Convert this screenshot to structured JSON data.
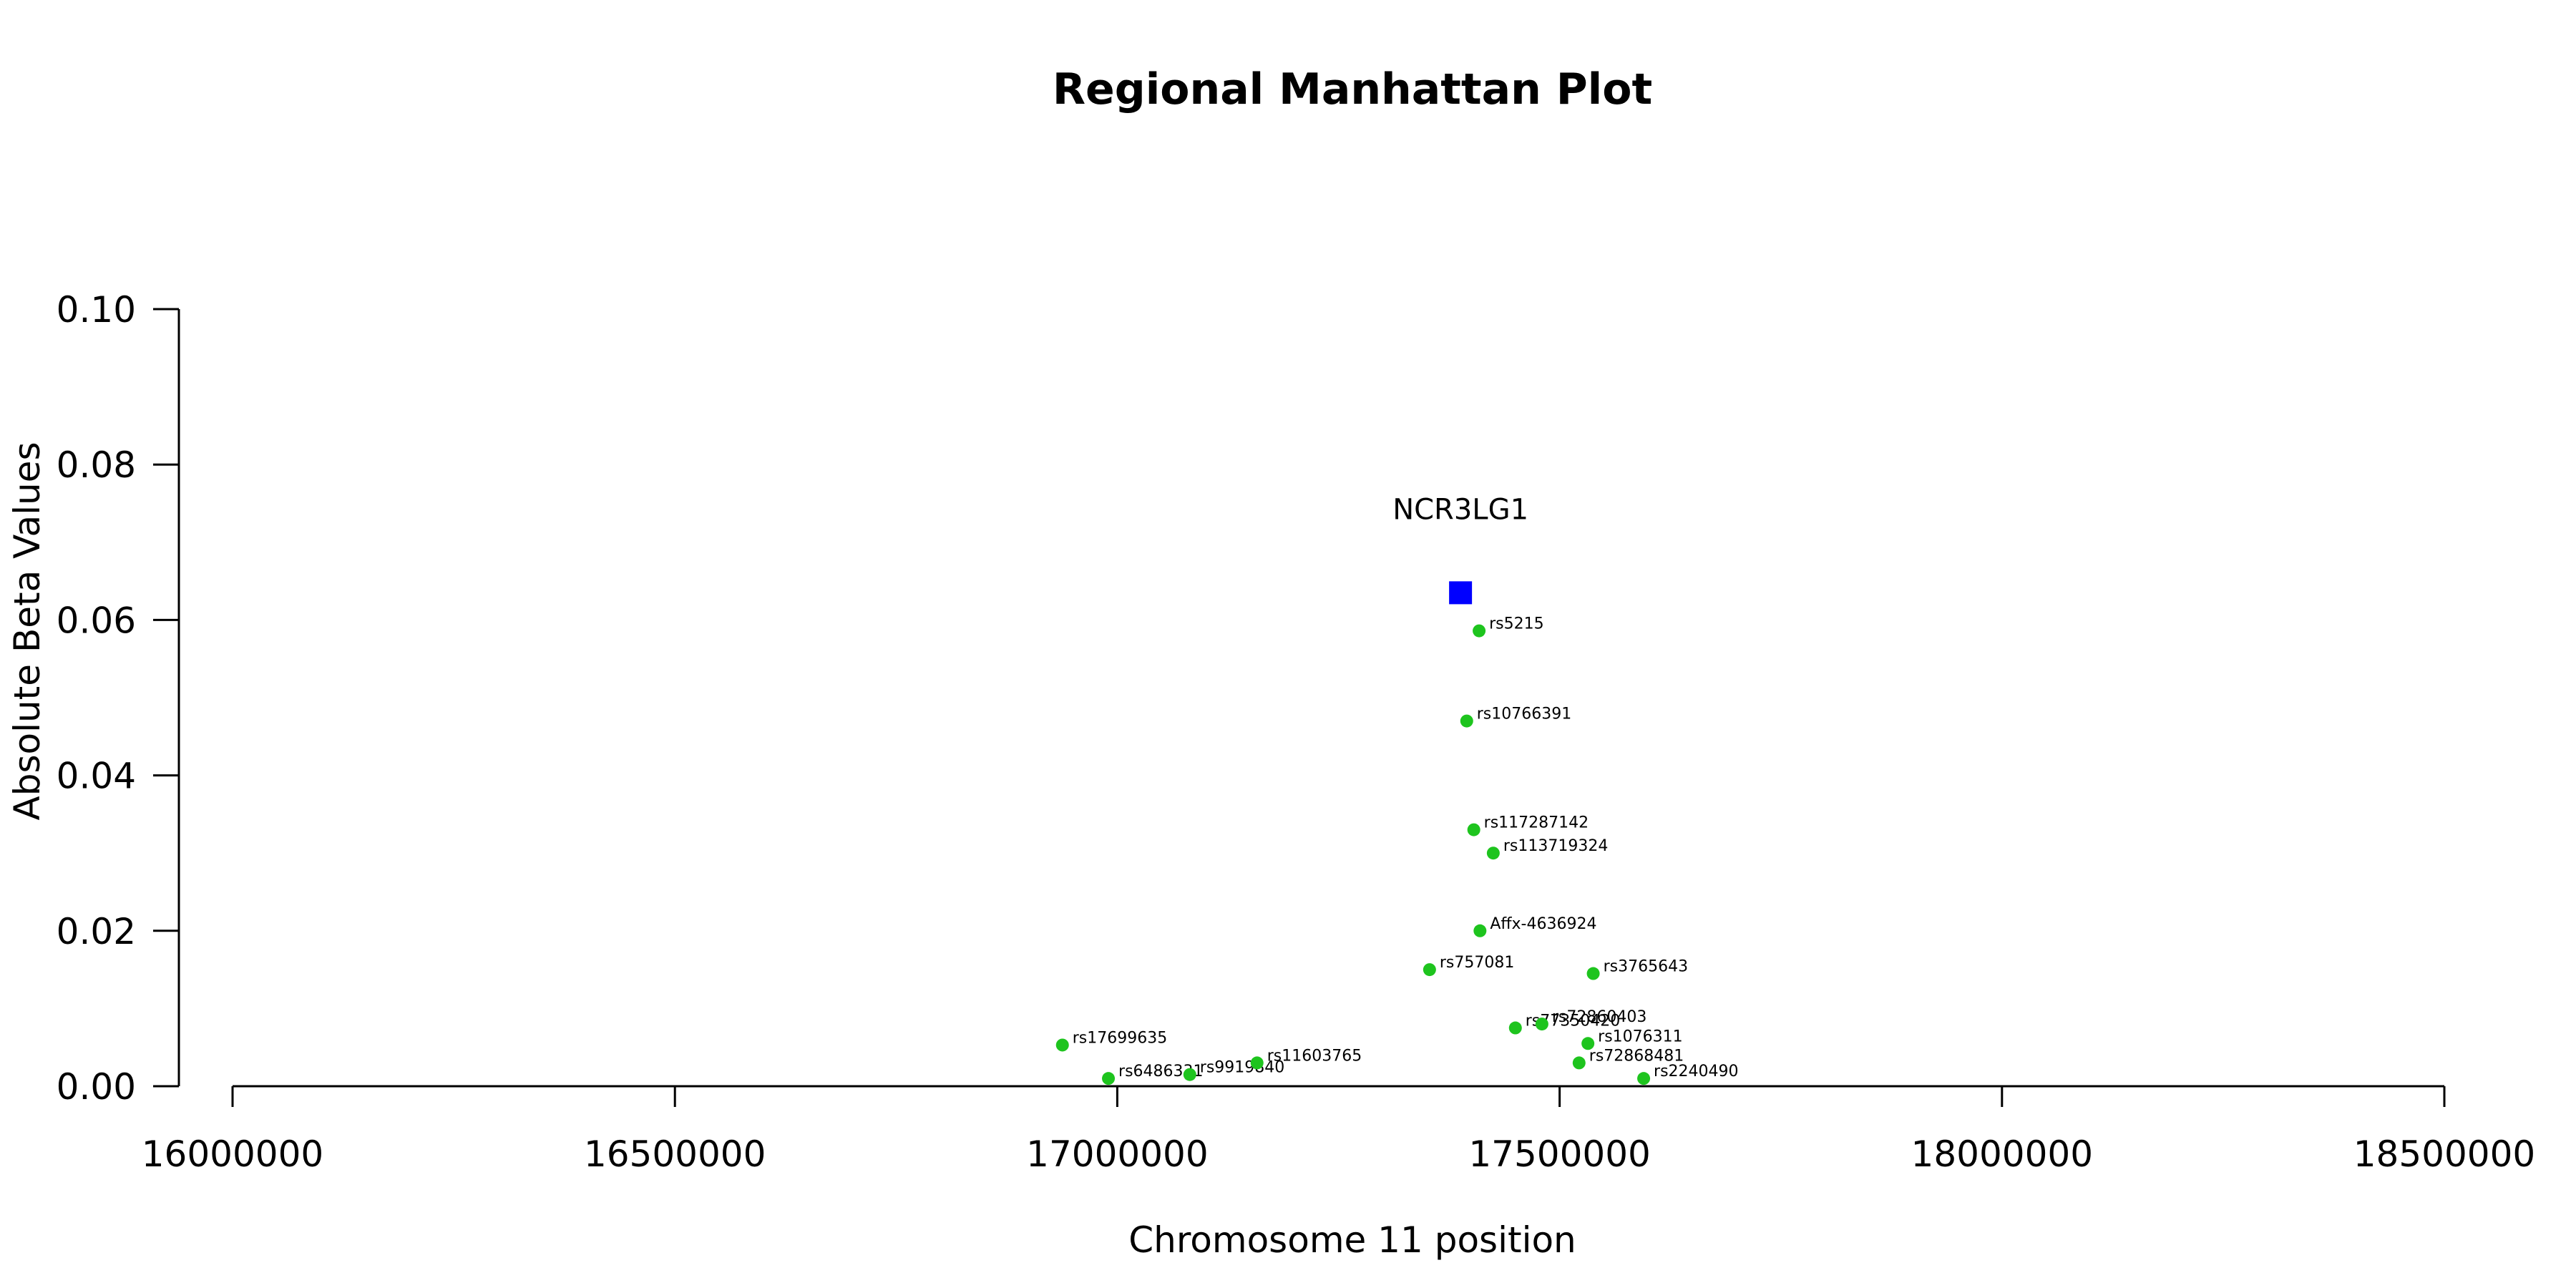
{
  "chart_data": {
    "type": "scatter",
    "title": "Regional Manhattan Plot",
    "xlabel": "Chromosome 11 position",
    "ylabel": "Absolute Beta Values",
    "xlim": [
      16000000,
      18500000
    ],
    "ylim": [
      0,
      0.1
    ],
    "x_ticks": [
      16000000,
      16500000,
      17000000,
      17500000,
      18000000,
      18500000
    ],
    "x_tick_labels": [
      "16000000",
      "16500000",
      "17000000",
      "17500000",
      "18000000",
      "18500000"
    ],
    "y_ticks": [
      0,
      0.02,
      0.04,
      0.06,
      0.08,
      0.1
    ],
    "y_tick_labels": [
      "0.00",
      "0.02",
      "0.04",
      "0.06",
      "0.08",
      "0.10"
    ],
    "grid": false,
    "colors": {
      "snp": "#1ec41e",
      "gene": "#0000ff"
    },
    "gene": {
      "name": "NCR3LG1",
      "x": 17388000,
      "y": 0.0635
    },
    "snps": [
      {
        "label": "rs5215",
        "x": 17409000,
        "y": 0.0586
      },
      {
        "label": "rs10766391",
        "x": 17395000,
        "y": 0.047
      },
      {
        "label": "rs117287142",
        "x": 17403000,
        "y": 0.033
      },
      {
        "label": "rs113719324",
        "x": 17425000,
        "y": 0.03
      },
      {
        "label": "Affx-4636924",
        "x": 17410000,
        "y": 0.02
      },
      {
        "label": "rs757081",
        "x": 17353000,
        "y": 0.015
      },
      {
        "label": "rs3765643",
        "x": 17538000,
        "y": 0.0145
      },
      {
        "label": "rs77350420",
        "x": 17450000,
        "y": 0.0075
      },
      {
        "label": "rs72860403",
        "x": 17480000,
        "y": 0.008
      },
      {
        "label": "rs1076311",
        "x": 17532000,
        "y": 0.0055
      },
      {
        "label": "rs72868481",
        "x": 17522000,
        "y": 0.003
      },
      {
        "label": "rs2240490",
        "x": 17595000,
        "y": 0.001
      },
      {
        "label": "rs17699635",
        "x": 16938000,
        "y": 0.0053
      },
      {
        "label": "rs6486331",
        "x": 16990000,
        "y": 0.001
      },
      {
        "label": "rs9919840",
        "x": 17082000,
        "y": 0.0015
      },
      {
        "label": "rs11603765",
        "x": 17158000,
        "y": 0.003
      }
    ]
  }
}
